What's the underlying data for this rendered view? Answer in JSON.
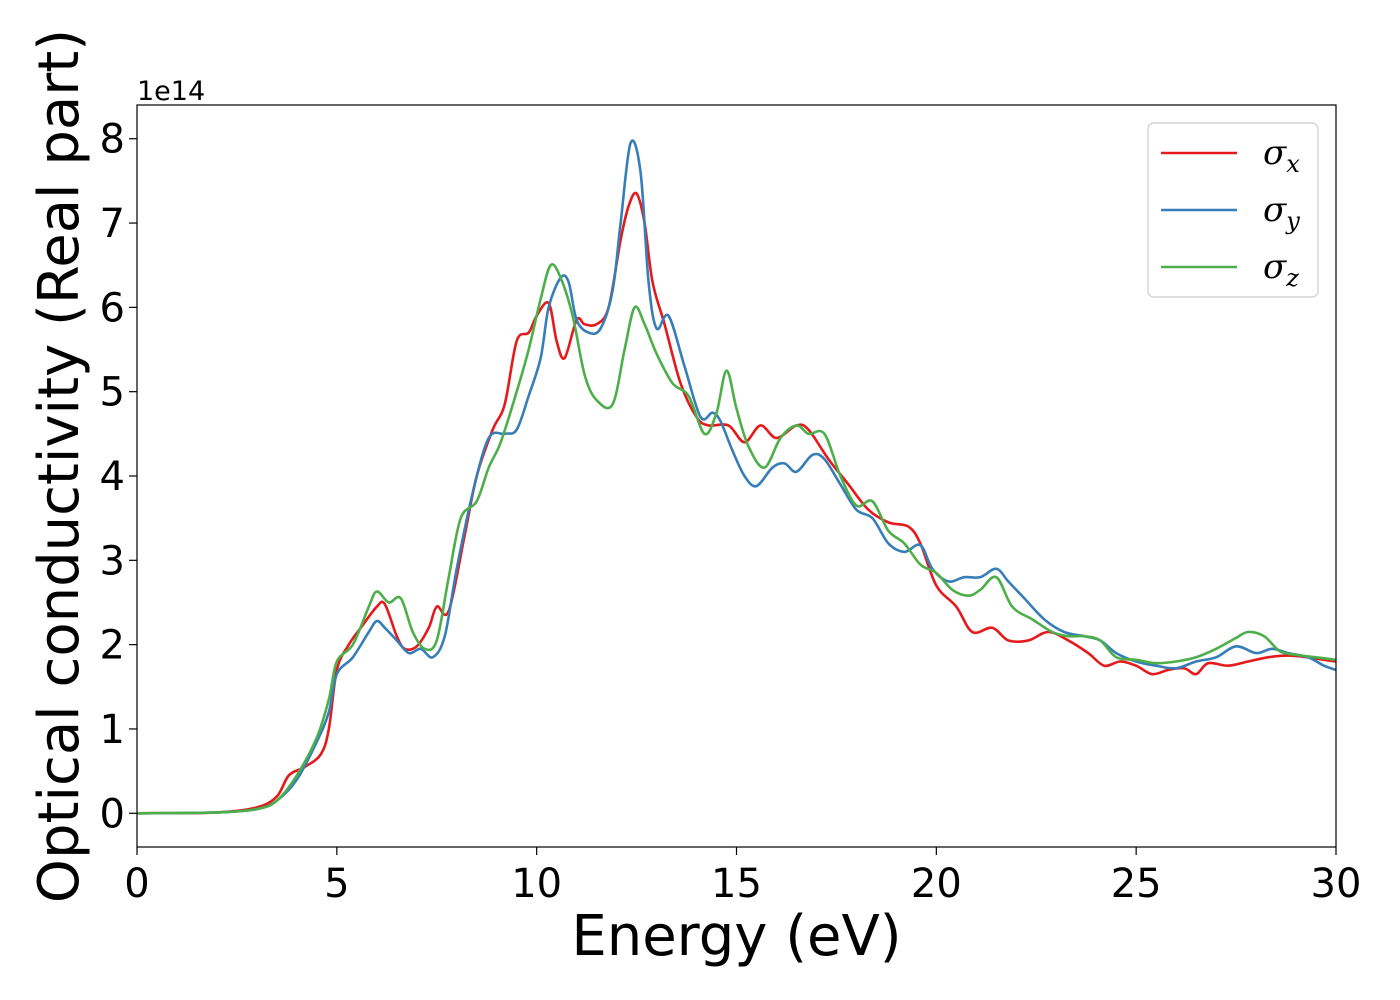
{
  "chart_data": {
    "type": "line",
    "title": "",
    "xlabel": "Energy (eV)",
    "ylabel": "Optical conductivity (Real part)",
    "y_offset_label": "1e14",
    "xlim": [
      0,
      30
    ],
    "ylim": [
      -0.4,
      8.4
    ],
    "x_ticks": [
      "0",
      "5",
      "10",
      "15",
      "20",
      "25",
      "30"
    ],
    "y_ticks": [
      "0",
      "1",
      "2",
      "3",
      "4",
      "5",
      "6",
      "7",
      "8"
    ],
    "grid": false,
    "legend_position": "top-right",
    "series": [
      {
        "name": "σx",
        "legend_symbol": "σ",
        "legend_sub": "x",
        "color": "#e41a1c",
        "points": [
          [
            0,
            0
          ],
          [
            2,
            0.01
          ],
          [
            3,
            0.07
          ],
          [
            3.5,
            0.2
          ],
          [
            3.8,
            0.45
          ],
          [
            4.2,
            0.55
          ],
          [
            4.6,
            0.7
          ],
          [
            4.8,
            1.0
          ],
          [
            5.0,
            1.7
          ],
          [
            5.3,
            2.0
          ],
          [
            5.6,
            2.2
          ],
          [
            6.0,
            2.45
          ],
          [
            6.2,
            2.48
          ],
          [
            6.5,
            2.1
          ],
          [
            6.7,
            1.95
          ],
          [
            7.0,
            1.98
          ],
          [
            7.3,
            2.2
          ],
          [
            7.5,
            2.45
          ],
          [
            7.8,
            2.4
          ],
          [
            8.2,
            3.3
          ],
          [
            8.5,
            4.0
          ],
          [
            8.9,
            4.55
          ],
          [
            9.2,
            4.85
          ],
          [
            9.5,
            5.6
          ],
          [
            9.8,
            5.7
          ],
          [
            10.0,
            5.9
          ],
          [
            10.3,
            6.05
          ],
          [
            10.5,
            5.6
          ],
          [
            10.7,
            5.4
          ],
          [
            11.0,
            5.85
          ],
          [
            11.2,
            5.8
          ],
          [
            11.5,
            5.8
          ],
          [
            11.8,
            6.0
          ],
          [
            12.1,
            6.8
          ],
          [
            12.3,
            7.2
          ],
          [
            12.5,
            7.35
          ],
          [
            12.7,
            7.0
          ],
          [
            12.9,
            6.3
          ],
          [
            13.2,
            5.8
          ],
          [
            13.6,
            5.1
          ],
          [
            14.0,
            4.7
          ],
          [
            14.3,
            4.6
          ],
          [
            14.8,
            4.6
          ],
          [
            15.2,
            4.4
          ],
          [
            15.6,
            4.6
          ],
          [
            16.0,
            4.45
          ],
          [
            16.5,
            4.6
          ],
          [
            16.8,
            4.55
          ],
          [
            17.3,
            4.2
          ],
          [
            17.8,
            3.9
          ],
          [
            18.3,
            3.6
          ],
          [
            18.8,
            3.45
          ],
          [
            19.3,
            3.4
          ],
          [
            19.6,
            3.2
          ],
          [
            20.0,
            2.7
          ],
          [
            20.5,
            2.45
          ],
          [
            20.9,
            2.15
          ],
          [
            21.4,
            2.2
          ],
          [
            21.8,
            2.05
          ],
          [
            22.3,
            2.05
          ],
          [
            22.8,
            2.15
          ],
          [
            23.3,
            2.05
          ],
          [
            23.8,
            1.9
          ],
          [
            24.2,
            1.75
          ],
          [
            24.6,
            1.8
          ],
          [
            25.0,
            1.75
          ],
          [
            25.4,
            1.65
          ],
          [
            25.8,
            1.7
          ],
          [
            26.2,
            1.72
          ],
          [
            26.5,
            1.65
          ],
          [
            26.8,
            1.78
          ],
          [
            27.3,
            1.75
          ],
          [
            27.8,
            1.8
          ],
          [
            28.3,
            1.85
          ],
          [
            28.8,
            1.87
          ],
          [
            29.3,
            1.85
          ],
          [
            29.7,
            1.82
          ],
          [
            30,
            1.8
          ]
        ]
      },
      {
        "name": "σy",
        "legend_symbol": "σ",
        "legend_sub": "y",
        "color": "#377eb8",
        "points": [
          [
            0,
            0
          ],
          [
            2,
            0.01
          ],
          [
            3,
            0.05
          ],
          [
            3.5,
            0.15
          ],
          [
            4.0,
            0.4
          ],
          [
            4.5,
            0.85
          ],
          [
            4.8,
            1.2
          ],
          [
            5.0,
            1.65
          ],
          [
            5.4,
            1.85
          ],
          [
            5.8,
            2.15
          ],
          [
            6.0,
            2.28
          ],
          [
            6.2,
            2.2
          ],
          [
            6.5,
            2.05
          ],
          [
            6.8,
            1.9
          ],
          [
            7.1,
            1.95
          ],
          [
            7.4,
            1.85
          ],
          [
            7.7,
            2.1
          ],
          [
            8.0,
            2.9
          ],
          [
            8.4,
            3.8
          ],
          [
            8.8,
            4.45
          ],
          [
            9.2,
            4.5
          ],
          [
            9.5,
            4.55
          ],
          [
            9.8,
            4.95
          ],
          [
            10.1,
            5.4
          ],
          [
            10.3,
            6.0
          ],
          [
            10.6,
            6.35
          ],
          [
            10.8,
            6.3
          ],
          [
            11.0,
            5.85
          ],
          [
            11.3,
            5.7
          ],
          [
            11.6,
            5.75
          ],
          [
            11.9,
            6.2
          ],
          [
            12.1,
            7.0
          ],
          [
            12.35,
            7.95
          ],
          [
            12.6,
            7.6
          ],
          [
            12.8,
            6.3
          ],
          [
            13.0,
            5.75
          ],
          [
            13.3,
            5.9
          ],
          [
            13.7,
            5.3
          ],
          [
            14.1,
            4.7
          ],
          [
            14.4,
            4.75
          ],
          [
            14.6,
            4.65
          ],
          [
            14.9,
            4.3
          ],
          [
            15.2,
            4.0
          ],
          [
            15.5,
            3.88
          ],
          [
            15.9,
            4.1
          ],
          [
            16.2,
            4.15
          ],
          [
            16.5,
            4.05
          ],
          [
            16.9,
            4.25
          ],
          [
            17.2,
            4.2
          ],
          [
            17.6,
            3.9
          ],
          [
            18.0,
            3.6
          ],
          [
            18.4,
            3.5
          ],
          [
            18.8,
            3.2
          ],
          [
            19.2,
            3.1
          ],
          [
            19.6,
            3.18
          ],
          [
            19.9,
            2.9
          ],
          [
            20.3,
            2.75
          ],
          [
            20.7,
            2.8
          ],
          [
            21.1,
            2.8
          ],
          [
            21.5,
            2.9
          ],
          [
            21.8,
            2.75
          ],
          [
            22.2,
            2.55
          ],
          [
            22.7,
            2.3
          ],
          [
            23.2,
            2.15
          ],
          [
            23.7,
            2.1
          ],
          [
            24.1,
            2.05
          ],
          [
            24.5,
            1.9
          ],
          [
            25.0,
            1.8
          ],
          [
            25.5,
            1.75
          ],
          [
            26.0,
            1.72
          ],
          [
            26.5,
            1.8
          ],
          [
            27.0,
            1.85
          ],
          [
            27.5,
            1.98
          ],
          [
            28.0,
            1.9
          ],
          [
            28.4,
            1.95
          ],
          [
            28.8,
            1.9
          ],
          [
            29.3,
            1.85
          ],
          [
            29.7,
            1.75
          ],
          [
            30,
            1.7
          ]
        ]
      },
      {
        "name": "σz",
        "legend_symbol": "σ",
        "legend_sub": "z",
        "color": "#4daf4a",
        "points": [
          [
            0,
            0
          ],
          [
            2,
            0.01
          ],
          [
            3,
            0.05
          ],
          [
            3.5,
            0.15
          ],
          [
            4.0,
            0.45
          ],
          [
            4.5,
            0.9
          ],
          [
            4.8,
            1.35
          ],
          [
            5.0,
            1.8
          ],
          [
            5.4,
            2.0
          ],
          [
            5.8,
            2.45
          ],
          [
            6.0,
            2.63
          ],
          [
            6.3,
            2.5
          ],
          [
            6.6,
            2.55
          ],
          [
            6.9,
            2.15
          ],
          [
            7.2,
            1.95
          ],
          [
            7.5,
            2.05
          ],
          [
            7.8,
            2.8
          ],
          [
            8.1,
            3.5
          ],
          [
            8.5,
            3.7
          ],
          [
            8.8,
            4.1
          ],
          [
            9.1,
            4.4
          ],
          [
            9.5,
            5.0
          ],
          [
            9.8,
            5.5
          ],
          [
            10.1,
            6.1
          ],
          [
            10.35,
            6.5
          ],
          [
            10.6,
            6.35
          ],
          [
            10.9,
            5.9
          ],
          [
            11.2,
            5.2
          ],
          [
            11.5,
            4.9
          ],
          [
            11.9,
            4.85
          ],
          [
            12.2,
            5.5
          ],
          [
            12.45,
            6.0
          ],
          [
            12.7,
            5.8
          ],
          [
            13.0,
            5.45
          ],
          [
            13.4,
            5.1
          ],
          [
            13.8,
            4.95
          ],
          [
            14.2,
            4.5
          ],
          [
            14.5,
            4.75
          ],
          [
            14.75,
            5.25
          ],
          [
            15.0,
            4.8
          ],
          [
            15.3,
            4.35
          ],
          [
            15.7,
            4.1
          ],
          [
            16.1,
            4.45
          ],
          [
            16.5,
            4.6
          ],
          [
            16.8,
            4.5
          ],
          [
            17.2,
            4.5
          ],
          [
            17.6,
            4.0
          ],
          [
            18.0,
            3.65
          ],
          [
            18.4,
            3.7
          ],
          [
            18.8,
            3.35
          ],
          [
            19.2,
            3.2
          ],
          [
            19.6,
            2.95
          ],
          [
            20.0,
            2.85
          ],
          [
            20.4,
            2.65
          ],
          [
            20.8,
            2.58
          ],
          [
            21.1,
            2.65
          ],
          [
            21.5,
            2.8
          ],
          [
            21.9,
            2.45
          ],
          [
            22.4,
            2.3
          ],
          [
            22.9,
            2.15
          ],
          [
            23.3,
            2.1
          ],
          [
            23.7,
            2.1
          ],
          [
            24.1,
            2.05
          ],
          [
            24.5,
            1.85
          ],
          [
            25.0,
            1.82
          ],
          [
            25.5,
            1.78
          ],
          [
            26.0,
            1.8
          ],
          [
            26.5,
            1.85
          ],
          [
            27.0,
            1.95
          ],
          [
            27.5,
            2.08
          ],
          [
            27.8,
            2.15
          ],
          [
            28.2,
            2.1
          ],
          [
            28.6,
            1.92
          ],
          [
            29.0,
            1.88
          ],
          [
            29.5,
            1.85
          ],
          [
            30,
            1.82
          ]
        ]
      }
    ]
  }
}
